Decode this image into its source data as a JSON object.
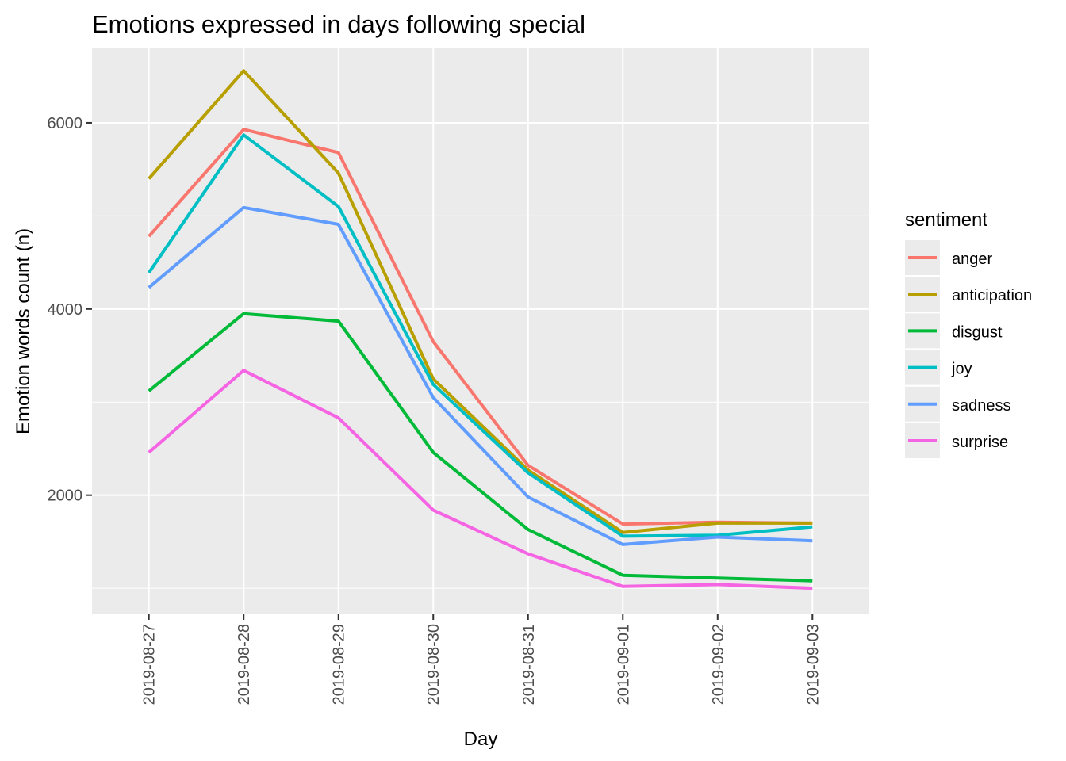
{
  "chart_data": {
    "type": "line",
    "title": "Emotions expressed in days following special",
    "xlabel": "Day",
    "ylabel": "Emotion words count (n)",
    "categories": [
      "2019-08-27",
      "2019-08-28",
      "2019-08-29",
      "2019-08-30",
      "2019-08-31",
      "2019-09-01",
      "2019-09-02",
      "2019-09-03"
    ],
    "ylim": [
      720,
      6800
    ],
    "y_ticks": [
      2000,
      4000,
      6000
    ],
    "y_tick_labels": [
      "2000",
      "4000",
      "6000"
    ],
    "y_minor_gridlines": [
      1000,
      3000,
      5000
    ],
    "grid": true,
    "legend_title": "sentiment",
    "legend_position": "right",
    "series": [
      {
        "name": "anger",
        "color": "#F8766D",
        "values": [
          4780,
          5930,
          5680,
          3650,
          2320,
          1690,
          1710,
          1700
        ]
      },
      {
        "name": "anticipation",
        "color": "#B79F00",
        "values": [
          5400,
          6560,
          5460,
          3250,
          2270,
          1600,
          1700,
          1700
        ]
      },
      {
        "name": "disgust",
        "color": "#00BA38",
        "values": [
          3120,
          3950,
          3870,
          2460,
          1630,
          1140,
          1110,
          1080
        ]
      },
      {
        "name": "joy",
        "color": "#00BFC4",
        "values": [
          4390,
          5870,
          5100,
          3190,
          2240,
          1560,
          1570,
          1660
        ]
      },
      {
        "name": "sadness",
        "color": "#619CFF",
        "values": [
          4230,
          5090,
          4910,
          3050,
          1980,
          1470,
          1550,
          1510
        ]
      },
      {
        "name": "surprise",
        "color": "#F564E3",
        "values": [
          2460,
          3340,
          2830,
          1840,
          1370,
          1020,
          1040,
          1000
        ]
      }
    ]
  }
}
